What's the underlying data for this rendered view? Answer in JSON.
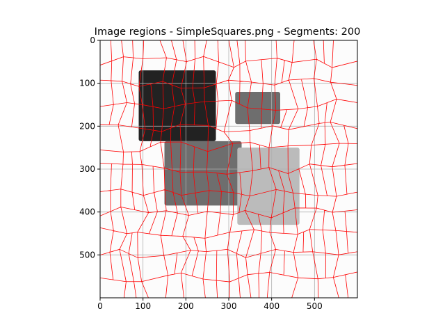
{
  "chart_data": {
    "type": "heatmap",
    "title": "Image regions - SimpleSquares.png - Segments: 200",
    "xlim": [
      0,
      600
    ],
    "ylim": [
      600,
      0
    ],
    "xticks": [
      0,
      100,
      200,
      300,
      400,
      500
    ],
    "yticks": [
      0,
      100,
      200,
      300,
      400,
      500
    ],
    "grid": true,
    "background_color": "#fcfcfc",
    "boundary_color": "#ff0000",
    "regions": [
      {
        "name": "black-square",
        "x": [
          90,
          270
        ],
        "y": [
          70,
          235
        ],
        "color": "#222222"
      },
      {
        "name": "dark-gray-square-top-right",
        "x": [
          315,
          420
        ],
        "y": [
          120,
          195
        ],
        "color": "#6e6e6e"
      },
      {
        "name": "gray-band-lower-left",
        "x": [
          150,
          330
        ],
        "y": [
          235,
          385
        ],
        "color": "#6e6e6e"
      },
      {
        "name": "light-gray-square",
        "x": [
          320,
          465
        ],
        "y": [
          250,
          430
        ],
        "color": "#bbbbbb"
      }
    ]
  }
}
